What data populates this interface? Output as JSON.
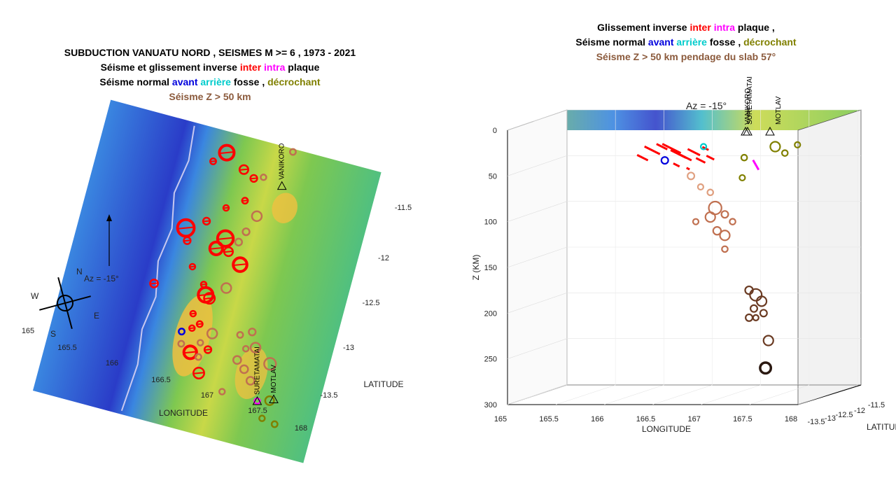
{
  "left": {
    "title_lines": [
      [
        {
          "t": "SUBDUCTION VANUATU  NORD , SEISMES M >=  6  , 1973 - 2021",
          "c": "#000000"
        }
      ],
      [
        {
          "t": "Séisme et glissement inverse ",
          "c": "#000000"
        },
        {
          "t": "inter",
          "c": "#ff0000"
        },
        {
          "t": " ",
          "c": "#000000"
        },
        {
          "t": "intra",
          "c": "#ff00ff"
        },
        {
          "t": " plaque",
          "c": "#000000"
        }
      ],
      [
        {
          "t": "Séisme normal  ",
          "c": "#000000"
        },
        {
          "t": "avant",
          "c": "#0000dd"
        },
        {
          "t": "  ",
          "c": "#000000"
        },
        {
          "t": "arrière",
          "c": "#00cccc"
        },
        {
          "t": "  fosse ,  ",
          "c": "#000000"
        },
        {
          "t": "décrochant",
          "c": "#808000"
        }
      ],
      [
        {
          "t": "Séisme Z > 50 km",
          "c": "#8b5a3c"
        }
      ]
    ],
    "az_label": "Az =  -15°",
    "compass": {
      "n": "N",
      "s": "S",
      "e": "E",
      "w": "W"
    },
    "lon_ticks": [
      "165",
      "165.5",
      "166",
      "166.5",
      "167",
      "167.5",
      "168"
    ],
    "lat_ticks": [
      "-11.5",
      "-12",
      "-12.5",
      "-13",
      "-13.5"
    ],
    "xlabel": "LONGITUDE",
    "ylabel": "LATITUDE",
    "stations": [
      {
        "name": "VANIKORO"
      },
      {
        "name": "SURETAMATAI"
      },
      {
        "name": "MOTLAV"
      }
    ]
  },
  "right": {
    "title_lines": [
      [
        {
          "t": "Glissement inverse ",
          "c": "#000000"
        },
        {
          "t": "inter",
          "c": "#ff0000"
        },
        {
          "t": " ",
          "c": "#000000"
        },
        {
          "t": "intra",
          "c": "#ff00ff"
        },
        {
          "t": " plaque ,",
          "c": "#000000"
        }
      ],
      [
        {
          "t": "Séisme normal  ",
          "c": "#000000"
        },
        {
          "t": "avant",
          "c": "#0000dd"
        },
        {
          "t": "  ",
          "c": "#000000"
        },
        {
          "t": "arrière",
          "c": "#00cccc"
        },
        {
          "t": "  fosse ,  ",
          "c": "#000000"
        },
        {
          "t": "décrochant",
          "c": "#808000"
        }
      ],
      [
        {
          "t": "Séisme Z > 50 km  pendage du slab 57°",
          "c": "#8b5a3c"
        }
      ]
    ],
    "az_label": "Az =  -15°",
    "z_ticks": [
      "0",
      "50",
      "100",
      "150",
      "200",
      "250",
      "300"
    ],
    "zlabel": "Z (KM)",
    "lon_ticks": [
      "165",
      "165.5",
      "166",
      "166.5",
      "167",
      "167.5",
      "168"
    ],
    "lat_ticks": [
      "-11.5",
      "-12",
      "-12.5",
      "-13",
      "-13.5"
    ],
    "xlabel": "LONGITUDE",
    "ylabel": "LATITUDE",
    "stations": [
      {
        "name": "VANIKORO"
      },
      {
        "name": "SURETAMATAI"
      },
      {
        "name": "MOTLAV"
      }
    ]
  },
  "chart_data": [
    {
      "type": "scatter",
      "view": "map",
      "x_quantity": "longitude",
      "y_quantity": "latitude",
      "xlim": [
        165,
        168
      ],
      "ylim": [
        -13.8,
        -11.3
      ],
      "rotation_deg": -15,
      "stations": [
        {
          "name": "VANIKORO",
          "lon": 167.1,
          "lat": -11.65
        },
        {
          "name": "SURETAMATAI",
          "lon": 167.45,
          "lat": -13.45
        },
        {
          "name": "MOTLAV",
          "lon": 167.62,
          "lat": -13.4
        }
      ],
      "events": [
        {
          "lon": 166.42,
          "lat": -11.5,
          "mag": 7.0,
          "type": "inter"
        },
        {
          "lon": 166.3,
          "lat": -11.6,
          "mag": 6.1,
          "type": "inter"
        },
        {
          "lon": 166.65,
          "lat": -11.6,
          "mag": 6.4,
          "type": "inter"
        },
        {
          "lon": 166.78,
          "lat": -11.65,
          "mag": 6.2,
          "type": "inter"
        },
        {
          "lon": 166.88,
          "lat": -11.62,
          "mag": 6.0,
          "type": "deep"
        },
        {
          "lon": 166.75,
          "lat": -11.85,
          "mag": 6.1,
          "type": "inter"
        },
        {
          "lon": 166.92,
          "lat": -11.95,
          "mag": 6.5,
          "type": "deep"
        },
        {
          "lon": 166.57,
          "lat": -11.95,
          "mag": 6.0,
          "type": "inter"
        },
        {
          "lon": 166.2,
          "lat": -12.2,
          "mag": 7.2,
          "type": "inter"
        },
        {
          "lon": 166.4,
          "lat": -12.1,
          "mag": 6.2,
          "type": "inter"
        },
        {
          "lon": 166.25,
          "lat": -12.3,
          "mag": 6.2,
          "type": "inter"
        },
        {
          "lon": 166.65,
          "lat": -12.2,
          "mag": 7.1,
          "type": "inter"
        },
        {
          "lon": 166.58,
          "lat": -12.3,
          "mag": 6.8,
          "type": "inter"
        },
        {
          "lon": 166.72,
          "lat": -12.3,
          "mag": 6.4,
          "type": "inter"
        },
        {
          "lon": 166.85,
          "lat": -12.1,
          "mag": 6.2,
          "type": "deep"
        },
        {
          "lon": 166.8,
          "lat": -12.2,
          "mag": 6.2,
          "type": "deep"
        },
        {
          "lon": 166.88,
          "lat": -12.38,
          "mag": 6.9,
          "type": "inter"
        },
        {
          "lon": 166.38,
          "lat": -12.5,
          "mag": 6.0,
          "type": "inter"
        },
        {
          "lon": 166.55,
          "lat": -12.62,
          "mag": 6.0,
          "type": "inter"
        },
        {
          "lon": 166.6,
          "lat": -12.7,
          "mag": 7.0,
          "type": "inter"
        },
        {
          "lon": 166.65,
          "lat": -12.72,
          "mag": 6.6,
          "type": "inter"
        },
        {
          "lon": 166.8,
          "lat": -12.6,
          "mag": 6.5,
          "type": "deep"
        },
        {
          "lon": 166.02,
          "lat": -12.72,
          "mag": 6.3,
          "type": "inter"
        },
        {
          "lon": 166.52,
          "lat": -12.88,
          "mag": 6.0,
          "type": "inter"
        },
        {
          "lon": 166.62,
          "lat": -12.95,
          "mag": 6.1,
          "type": "inter"
        },
        {
          "lon": 166.55,
          "lat": -13.0,
          "mag": 6.0,
          "type": "inter"
        },
        {
          "lon": 166.78,
          "lat": -13.0,
          "mag": 6.5,
          "type": "deep"
        },
        {
          "lon": 166.78,
          "lat": -13.14,
          "mag": 6.2,
          "type": "inter"
        },
        {
          "lon": 166.68,
          "lat": -13.1,
          "mag": 6.0,
          "type": "deep"
        },
        {
          "lon": 166.45,
          "lat": -13.05,
          "mag": 6.1,
          "type": "avant"
        },
        {
          "lon": 166.6,
          "lat": -13.2,
          "mag": 6.8,
          "type": "inter"
        },
        {
          "lon": 166.48,
          "lat": -13.15,
          "mag": 6.1,
          "type": "deep"
        },
        {
          "lon": 166.7,
          "lat": -13.22,
          "mag": 6.1,
          "type": "deep"
        },
        {
          "lon": 166.75,
          "lat": -13.35,
          "mag": 6.6,
          "type": "inter"
        },
        {
          "lon": 167.08,
          "lat": -12.95,
          "mag": 6.1,
          "type": "deep"
        },
        {
          "lon": 167.2,
          "lat": -12.9,
          "mag": 6.2,
          "type": "deep"
        },
        {
          "lon": 167.18,
          "lat": -13.05,
          "mag": 6.0,
          "type": "deep"
        },
        {
          "lon": 167.28,
          "lat": -13.02,
          "mag": 6.5,
          "type": "deep"
        },
        {
          "lon": 167.12,
          "lat": -13.16,
          "mag": 6.3,
          "type": "deep"
        },
        {
          "lon": 167.22,
          "lat": -13.22,
          "mag": 6.3,
          "type": "deep"
        },
        {
          "lon": 167.32,
          "lat": -13.3,
          "mag": 6.3,
          "type": "deep"
        },
        {
          "lon": 167.48,
          "lat": -13.12,
          "mag": 6.7,
          "type": "deep"
        },
        {
          "lon": 167.05,
          "lat": -13.45,
          "mag": 6.0,
          "type": "deep"
        },
        {
          "lon": 167.45,
          "lat": -13.45,
          "mag": 6.0,
          "type": "intra"
        },
        {
          "lon": 167.58,
          "lat": -13.42,
          "mag": 6.4,
          "type": "decrochant"
        },
        {
          "lon": 167.7,
          "lat": -13.6,
          "mag": 6.1,
          "type": "decrochant"
        },
        {
          "lon": 167.55,
          "lat": -13.58,
          "mag": 6.0,
          "type": "decrochant"
        },
        {
          "lon": 167.12,
          "lat": -11.35,
          "mag": 6.1,
          "type": "deep"
        }
      ]
    },
    {
      "type": "scatter",
      "view": "3d-depth",
      "x_quantity": "longitude",
      "z_quantity": "depth_km",
      "xlim": [
        165,
        168
      ],
      "zlim": [
        0,
        300
      ],
      "events": [
        {
          "lon": 166.25,
          "depth": 30,
          "mag": 6.5,
          "type": "inter"
        },
        {
          "lon": 166.35,
          "depth": 22,
          "mag": 6.8,
          "type": "inter"
        },
        {
          "lon": 166.45,
          "depth": 18,
          "mag": 6.5,
          "type": "inter"
        },
        {
          "lon": 166.55,
          "depth": 20,
          "mag": 7.0,
          "type": "inter"
        },
        {
          "lon": 166.62,
          "depth": 26,
          "mag": 6.8,
          "type": "inter"
        },
        {
          "lon": 166.7,
          "depth": 30,
          "mag": 6.5,
          "type": "inter"
        },
        {
          "lon": 166.78,
          "depth": 24,
          "mag": 6.6,
          "type": "inter"
        },
        {
          "lon": 166.85,
          "depth": 33,
          "mag": 6.4,
          "type": "inter"
        },
        {
          "lon": 166.9,
          "depth": 20,
          "mag": 6.2,
          "type": "inter"
        },
        {
          "lon": 166.6,
          "depth": 38,
          "mag": 6.2,
          "type": "inter"
        },
        {
          "lon": 166.72,
          "depth": 42,
          "mag": 6.0,
          "type": "inter"
        },
        {
          "lon": 166.95,
          "depth": 30,
          "mag": 6.3,
          "type": "inter"
        },
        {
          "lon": 166.48,
          "depth": 33,
          "mag": 6.2,
          "type": "avant"
        },
        {
          "lon": 166.88,
          "depth": 18,
          "mag": 6.0,
          "type": "arriere"
        },
        {
          "lon": 167.42,
          "depth": 38,
          "mag": 6.2,
          "type": "intra"
        },
        {
          "lon": 167.3,
          "depth": 30,
          "mag": 6.1,
          "type": "decrochant"
        },
        {
          "lon": 167.28,
          "depth": 52,
          "mag": 6.0,
          "type": "decrochant"
        },
        {
          "lon": 167.62,
          "depth": 18,
          "mag": 6.5,
          "type": "decrochant"
        },
        {
          "lon": 167.72,
          "depth": 25,
          "mag": 6.1,
          "type": "decrochant"
        },
        {
          "lon": 167.85,
          "depth": 16,
          "mag": 6.0,
          "type": "decrochant"
        },
        {
          "lon": 166.75,
          "depth": 50,
          "mag": 6.2,
          "type": "deep"
        },
        {
          "lon": 166.85,
          "depth": 62,
          "mag": 6.0,
          "type": "deep"
        },
        {
          "lon": 166.95,
          "depth": 68,
          "mag": 6.1,
          "type": "deep"
        },
        {
          "lon": 167.0,
          "depth": 85,
          "mag": 6.8,
          "type": "deep"
        },
        {
          "lon": 166.95,
          "depth": 95,
          "mag": 6.5,
          "type": "deep"
        },
        {
          "lon": 167.1,
          "depth": 92,
          "mag": 6.2,
          "type": "deep"
        },
        {
          "lon": 167.02,
          "depth": 110,
          "mag": 6.3,
          "type": "deep"
        },
        {
          "lon": 166.8,
          "depth": 100,
          "mag": 6.0,
          "type": "deep"
        },
        {
          "lon": 167.1,
          "depth": 115,
          "mag": 6.5,
          "type": "deep"
        },
        {
          "lon": 167.18,
          "depth": 100,
          "mag": 6.1,
          "type": "deep"
        },
        {
          "lon": 167.1,
          "depth": 130,
          "mag": 6.1,
          "type": "deep"
        },
        {
          "lon": 167.35,
          "depth": 175,
          "mag": 6.3,
          "type": "deep"
        },
        {
          "lon": 167.42,
          "depth": 180,
          "mag": 6.7,
          "type": "deep"
        },
        {
          "lon": 167.48,
          "depth": 187,
          "mag": 6.5,
          "type": "deep"
        },
        {
          "lon": 167.4,
          "depth": 195,
          "mag": 6.2,
          "type": "deep"
        },
        {
          "lon": 167.5,
          "depth": 200,
          "mag": 6.2,
          "type": "deep"
        },
        {
          "lon": 167.42,
          "depth": 205,
          "mag": 6.0,
          "type": "deep"
        },
        {
          "lon": 167.35,
          "depth": 205,
          "mag": 6.2,
          "type": "deep"
        },
        {
          "lon": 167.55,
          "depth": 230,
          "mag": 6.5,
          "type": "deep"
        },
        {
          "lon": 167.52,
          "depth": 260,
          "mag": 6.6,
          "type": "deep"
        }
      ]
    }
  ],
  "colors": {
    "inter": "#ff0000",
    "intra": "#ff00ff",
    "avant": "#0000dd",
    "arriere": "#00cccc",
    "decrochant": "#808000",
    "deep_shallow": "#e0a080",
    "deep_mid": "#c07050",
    "deep_far": "#6a3a22",
    "deep_deepest": "#2a1810",
    "terrain_deep": "#3040c8",
    "terrain_mid": "#3a86e0",
    "terrain_shelf": "#40b8c8",
    "terrain_land": "#7ec850",
    "terrain_high": "#f0c040"
  }
}
